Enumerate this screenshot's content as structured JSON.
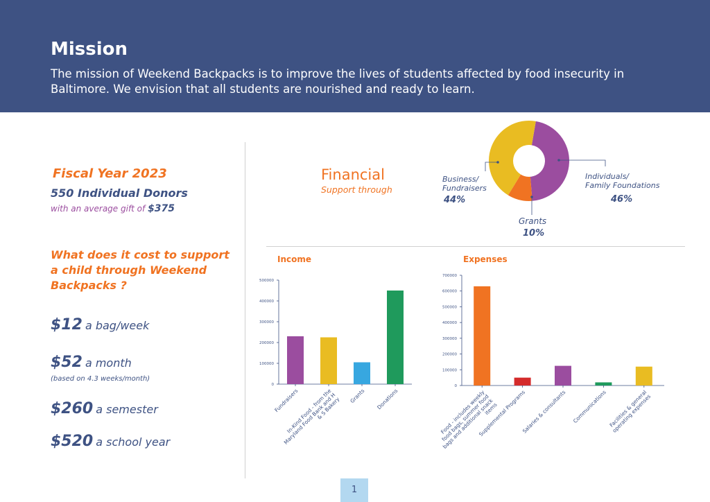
{
  "header": {
    "title": "Mission",
    "mission_text": "The mission of Weekend Backpacks is to improve the lives of students affected by food insecurity in Baltimore.  We envision that all students are nourished and ready to learn."
  },
  "left": {
    "fiscal_year": "Fiscal Year 2023",
    "donors": "550  Individual Donors",
    "avg_prefix": "with an average gift of ",
    "avg_amount": "$375",
    "question": "What does it cost to support a child through Weekend Backpacks ?",
    "costs": [
      {
        "amount": "$12",
        "unit": "a bag/week"
      },
      {
        "amount": "$52",
        "unit": "a month"
      },
      {
        "amount": "$260",
        "unit": "a semester"
      },
      {
        "amount": "$520",
        "unit": "a school year"
      }
    ],
    "cost_note": "(based on 4.3 weeks/month)"
  },
  "financial": {
    "title": "Financial",
    "subtitle": "Support through",
    "business_label": "Business/\nFundraisers",
    "business_pct": "44%",
    "individuals_label": "Individuals/\nFamily Foundations",
    "individuals_pct": "46%",
    "grants_label": "Grants",
    "grants_pct": "10%"
  },
  "colors": {
    "navy": "#3e5283",
    "orange": "#f07322",
    "purple": "#9b4d9f",
    "yellow": "#e9bc22",
    "blue": "#37a7e0",
    "green": "#1f9a5c",
    "red": "#d42b2b",
    "page_badge": "#b3d8f0"
  },
  "page_number": "1",
  "chart_data": [
    {
      "type": "pie",
      "title": "",
      "labels": [
        "Individuals/ Family Foundations",
        "Grants",
        "Business/ Fundraisers"
      ],
      "values": [
        46,
        10,
        44
      ],
      "colors": [
        "#9b4d9f",
        "#f07322",
        "#e9bc22"
      ]
    },
    {
      "type": "bar",
      "title": "Income",
      "categories": [
        "Fundraisers",
        "In-Kind Food - from the Maryland Food Bank and H & S Bakery",
        "Grants",
        "Donations"
      ],
      "values": [
        230000,
        225000,
        105000,
        450000
      ],
      "colors": [
        "#9b4d9f",
        "#e9bc22",
        "#37a7e0",
        "#1f9a5c"
      ],
      "ylim": [
        0,
        500000
      ],
      "yticks": [
        "0",
        "100000",
        "200000",
        "300000",
        "400000",
        "500000"
      ]
    },
    {
      "type": "bar",
      "title": "Expenses",
      "categories": [
        "Food - includes weekly food bags, summer food bags and additional snack items",
        "Supplemental Programs",
        "Salaries & consultants",
        "Communications",
        "Facilities & general operating expenses"
      ],
      "values": [
        630000,
        50000,
        125000,
        20000,
        120000
      ],
      "colors": [
        "#f07322",
        "#d42b2b",
        "#9b4d9f",
        "#1f9a5c",
        "#e9bc22"
      ],
      "ylim": [
        0,
        700000
      ],
      "yticks": [
        "0",
        "100000",
        "200000",
        "300000",
        "400000",
        "500000",
        "600000",
        "700000"
      ]
    }
  ]
}
